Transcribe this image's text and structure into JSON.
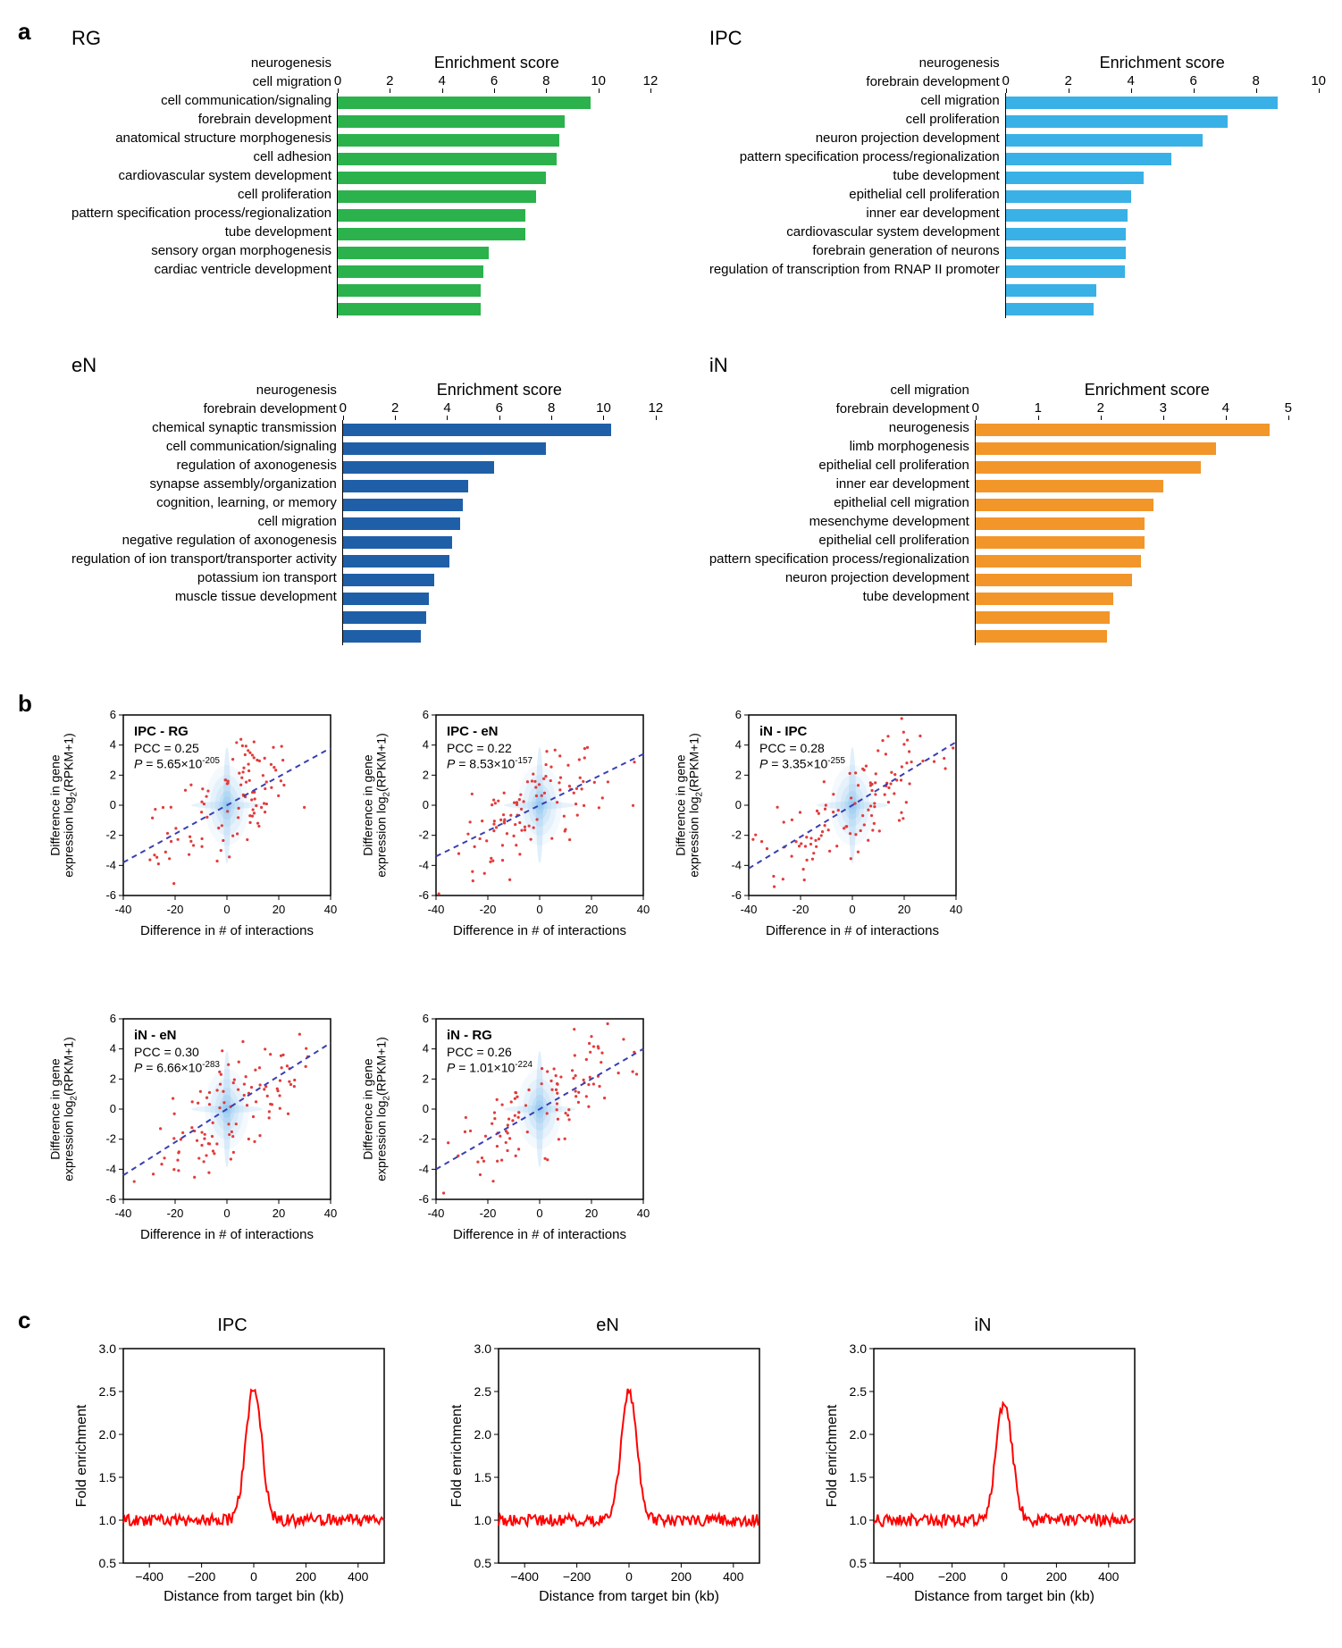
{
  "global": {
    "background_color": "#ffffff",
    "text_color": "#000000",
    "font_family": "Arial, Helvetica, sans-serif"
  },
  "panel_a": {
    "label": "a",
    "axis_title": "Enrichment score",
    "charts": [
      {
        "key": "RG",
        "title": "RG",
        "bar_color": "#2bb24c",
        "xlim": [
          0,
          12
        ],
        "xticks": [
          0,
          2,
          4,
          6,
          8,
          10,
          12
        ],
        "items": [
          {
            "label": "neurogenesis",
            "value": 9.7
          },
          {
            "label": "cell migration",
            "value": 8.7
          },
          {
            "label": "cell communication/signaling",
            "value": 8.5
          },
          {
            "label": "forebrain development",
            "value": 8.4
          },
          {
            "label": "anatomical structure morphogenesis",
            "value": 8.0
          },
          {
            "label": "cell adhesion",
            "value": 7.6
          },
          {
            "label": "cardiovascular system development",
            "value": 7.2
          },
          {
            "label": "cell proliferation",
            "value": 7.2
          },
          {
            "label": "pattern specification process/regionalization",
            "value": 5.8
          },
          {
            "label": "tube development",
            "value": 5.6
          },
          {
            "label": "sensory organ morphogenesis",
            "value": 5.5
          },
          {
            "label": "cardiac ventricle development",
            "value": 5.5
          }
        ]
      },
      {
        "key": "IPC",
        "title": "IPC",
        "bar_color": "#39b1e6",
        "xlim": [
          0,
          10
        ],
        "xticks": [
          0,
          2,
          4,
          6,
          8,
          10
        ],
        "items": [
          {
            "label": "neurogenesis",
            "value": 8.7
          },
          {
            "label": "forebrain development",
            "value": 7.1
          },
          {
            "label": "cell migration",
            "value": 6.3
          },
          {
            "label": "cell proliferation",
            "value": 5.3
          },
          {
            "label": "neuron projection development",
            "value": 4.4
          },
          {
            "label": "pattern specification process/regionalization",
            "value": 4.0
          },
          {
            "label": "tube development",
            "value": 3.9
          },
          {
            "label": "epithelial cell proliferation",
            "value": 3.85
          },
          {
            "label": "inner ear development",
            "value": 3.85
          },
          {
            "label": "cardiovascular system development",
            "value": 3.8
          },
          {
            "label": "forebrain generation of neurons",
            "value": 2.9
          },
          {
            "label": "regulation of transcription from RNAP II promoter",
            "value": 2.8
          }
        ]
      },
      {
        "key": "eN",
        "title": "eN",
        "bar_color": "#1f5fa8",
        "xlim": [
          0,
          12
        ],
        "xticks": [
          0,
          2,
          4,
          6,
          8,
          10,
          12
        ],
        "items": [
          {
            "label": "neurogenesis",
            "value": 10.3
          },
          {
            "label": "forebrain development",
            "value": 7.8
          },
          {
            "label": "chemical synaptic transmission",
            "value": 5.8
          },
          {
            "label": "cell communication/signaling",
            "value": 4.8
          },
          {
            "label": "regulation of axonogenesis",
            "value": 4.6
          },
          {
            "label": "synapse assembly/organization",
            "value": 4.5
          },
          {
            "label": "cognition, learning, or memory",
            "value": 4.2
          },
          {
            "label": "cell migration",
            "value": 4.1
          },
          {
            "label": "negative regulation of axonogenesis",
            "value": 3.5
          },
          {
            "label": "regulation of ion transport/transporter activity",
            "value": 3.3
          },
          {
            "label": "potassium ion transport",
            "value": 3.2
          },
          {
            "label": "muscle tissue development",
            "value": 3.0
          }
        ]
      },
      {
        "key": "iN",
        "title": "iN",
        "bar_color": "#f2962a",
        "xlim": [
          0,
          5
        ],
        "xticks": [
          0,
          1,
          2,
          3,
          4,
          5
        ],
        "items": [
          {
            "label": "cell migration",
            "value": 4.7
          },
          {
            "label": "forebrain development",
            "value": 3.85
          },
          {
            "label": "neurogenesis",
            "value": 3.6
          },
          {
            "label": "limb morphogenesis",
            "value": 3.0
          },
          {
            "label": "epithelial cell proliferation",
            "value": 2.85
          },
          {
            "label": "inner ear development",
            "value": 2.7
          },
          {
            "label": "epithelial cell migration",
            "value": 2.7
          },
          {
            "label": "mesenchyme development",
            "value": 2.65
          },
          {
            "label": "epithelial cell proliferation",
            "value": 2.5
          },
          {
            "label": "pattern specification process/regionalization",
            "value": 2.2
          },
          {
            "label": "neuron projection development",
            "value": 2.15
          },
          {
            "label": "tube development",
            "value": 2.1
          }
        ]
      }
    ]
  },
  "panel_b": {
    "label": "b",
    "common": {
      "xlim": [
        -40,
        40
      ],
      "ylim": [
        -6,
        6
      ],
      "xticks": [
        -40,
        -20,
        0,
        20,
        40
      ],
      "yticks": [
        -6,
        -4,
        -2,
        0,
        2,
        4,
        6
      ],
      "xlabel": "Difference in # of interactions",
      "ylabel_html": "Difference in gene<br>expression log<sub>2</sub>(RPKM+1)",
      "trend_color": "#3a3fb0",
      "trend_dash": "6,5",
      "cloud_color": "#8fc7f0",
      "outlier_color": "#e23b3b",
      "axis_color": "#000000",
      "n_outliers": 120
    },
    "plots": [
      {
        "title": "IPC - RG",
        "pcc": "0.25",
        "p_html": "<i>P</i> = 5.65×10<sup>-205</sup>",
        "slope": 0.095
      },
      {
        "title": "IPC - eN",
        "pcc": "0.22",
        "p_html": "<i>P</i> = 8.53×10<sup>-157</sup>",
        "slope": 0.085
      },
      {
        "title": "iN - IPC",
        "pcc": "0.28",
        "p_html": "<i>P</i> = 3.35×10<sup>-255</sup>",
        "slope": 0.105
      },
      {
        "title": "iN - eN",
        "pcc": "0.30",
        "p_html": "<i>P</i> = 6.66×10<sup>-283</sup>",
        "slope": 0.11
      },
      {
        "title": "iN - RG",
        "pcc": "0.26",
        "p_html": "<i>P</i> = 1.01×10<sup>-224</sup>",
        "slope": 0.1
      }
    ]
  },
  "panel_c": {
    "label": "c",
    "common": {
      "xlim": [
        -500,
        500
      ],
      "ylim": [
        0.5,
        3.0
      ],
      "xticks": [
        -400,
        -200,
        0,
        200,
        400
      ],
      "yticks": [
        0.5,
        1.0,
        1.5,
        2.0,
        2.5,
        3.0
      ],
      "xlabel": "Distance from target bin (kb)",
      "ylabel": "Fold enrichment",
      "line_color": "#ff0000",
      "line_width": 2,
      "axis_color": "#000000",
      "baseline": 1.0,
      "noise_amp": 0.07
    },
    "plots": [
      {
        "title": "IPC",
        "peak": 2.55,
        "peak_sigma_kb": 30
      },
      {
        "title": "eN",
        "peak": 2.5,
        "peak_sigma_kb": 30
      },
      {
        "title": "iN",
        "peak": 2.4,
        "peak_sigma_kb": 30
      }
    ]
  }
}
